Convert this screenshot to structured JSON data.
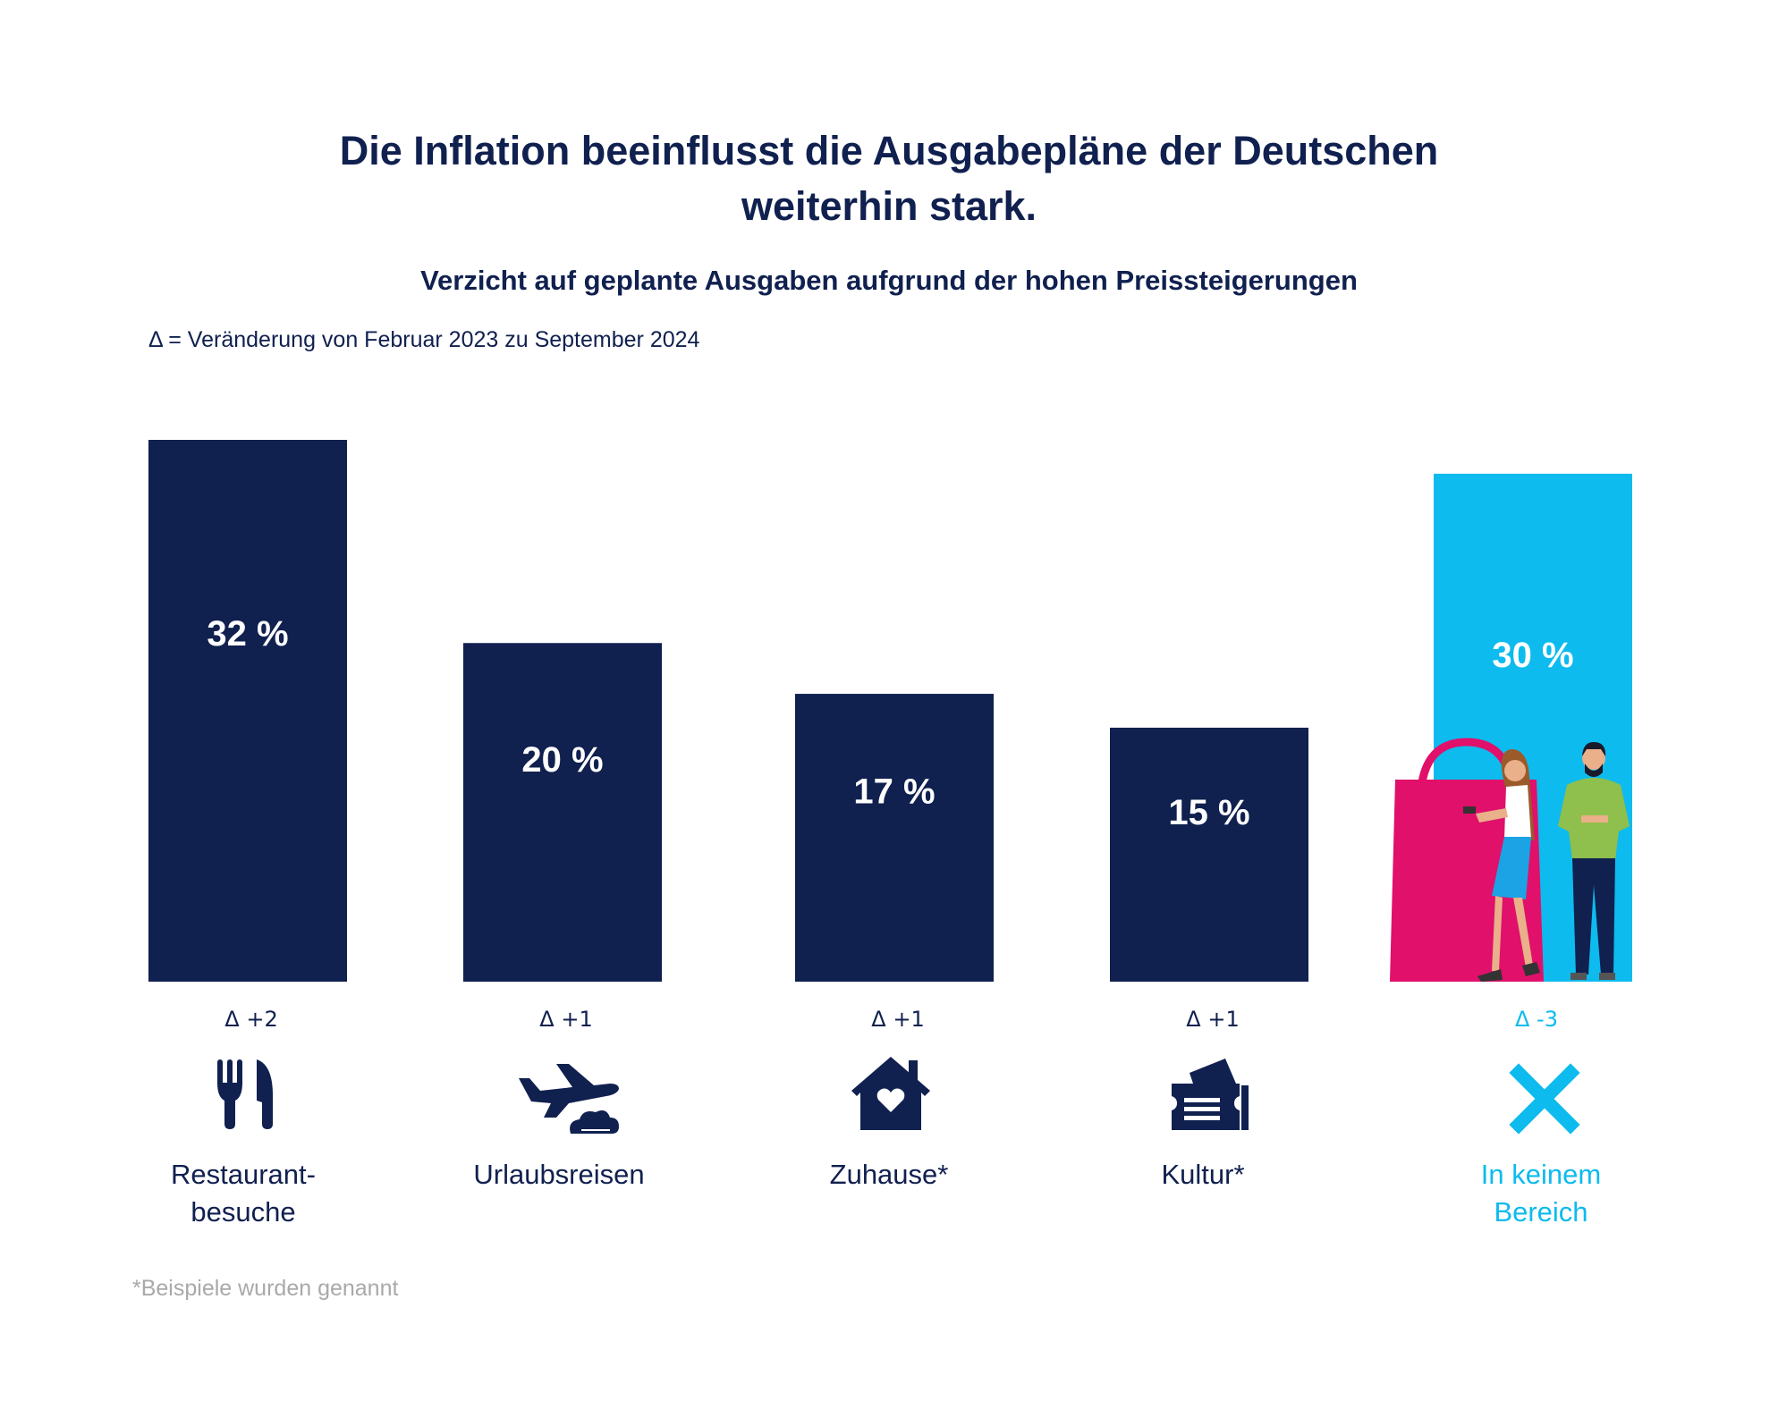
{
  "header": {
    "title_line1": "Die Inflation beeinflusst die Ausgabepläne der Deutschen",
    "title_line2": "weiterhin stark.",
    "subtitle": "Verzicht auf geplante Ausgaben aufgrund der hohen Preissteigerungen",
    "delta_note": "Δ = Veränderung von Februar 2023 zu September 2024"
  },
  "footnote": "*Beispiele wurden genannt",
  "colors": {
    "navy": "#10204f",
    "cyan": "#0dbbee",
    "pink": "#e0106b",
    "green": "#8fbf4c"
  },
  "chart_data": {
    "type": "bar",
    "title": "Verzicht auf geplante Ausgaben aufgrund der hohen Preissteigerungen",
    "unit": "%",
    "ylim": [
      0,
      32
    ],
    "categories": [
      "Restaurant-besuche",
      "Urlaubsreisen",
      "Zuhause*",
      "Kultur*",
      "In keinem Bereich"
    ],
    "category_lines": [
      [
        "Restaurant-",
        "besuche"
      ],
      [
        "Urlaubsreisen"
      ],
      [
        "Zuhause*"
      ],
      [
        "Kultur*"
      ],
      [
        "In keinem",
        "Bereich"
      ]
    ],
    "values": [
      32,
      20,
      17,
      15,
      30
    ],
    "value_labels": [
      "32 %",
      "20 %",
      "17 %",
      "15 %",
      "30 %"
    ],
    "deltas": [
      "Δ +2",
      "Δ +1",
      "Δ +1",
      "Δ +1",
      "Δ -3"
    ],
    "icons": [
      "fork-knife-icon",
      "airplane-icon",
      "house-heart-icon",
      "ticket-icon",
      "cross-icon"
    ],
    "highlight": [
      false,
      false,
      false,
      false,
      true
    ]
  }
}
